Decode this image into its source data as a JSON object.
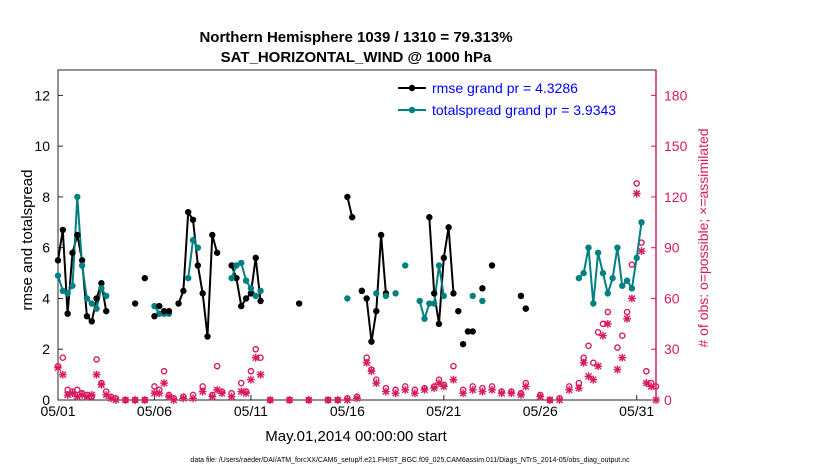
{
  "chart_data": {
    "type": "line",
    "title": "Northern Hemisphere 1039 / 1310 = 79.313%",
    "subtitle": "SAT_HORIZONTAL_WIND @ 1000 hPa",
    "xlabel": "May.01,2014 00:00:00 start",
    "ylabel": "rmse and totalspread",
    "ylabel_right": "# of obs: o=possible; ×=assimilated",
    "footer": "data file: /Users/raeder/DAI/ATM_forcXX/CAM6_setup/f.e21.FHIST_BGC.f09_025.CAM6assim.011/Diags_NTrS_2014-05/obs_diag_output.nc",
    "xlim": [
      1,
      32
    ],
    "ylim": [
      0,
      13
    ],
    "ylim_right": [
      0,
      195
    ],
    "x_ticks": [
      1,
      6,
      11,
      16,
      21,
      26,
      31
    ],
    "x_tick_labels": [
      "05/01",
      "05/06",
      "05/11",
      "05/16",
      "05/21",
      "05/26",
      "05/31"
    ],
    "y_ticks": [
      0,
      2,
      4,
      6,
      8,
      10,
      12
    ],
    "y_tick_labels": [
      "0",
      "2",
      "4",
      "6",
      "8",
      "10",
      "12"
    ],
    "y_right_ticks": [
      0,
      30,
      60,
      90,
      120,
      150,
      180
    ],
    "y_right_tick_labels": [
      "0",
      "30",
      "60",
      "90",
      "120",
      "150",
      "180"
    ],
    "legend_position": "top-right",
    "colors": {
      "rmse": "#000000",
      "spread": "#008080",
      "obs": "#d81b60",
      "right_axis": "#d81b60"
    },
    "series": [
      {
        "name": "rmse grand pr = 4.3286",
        "color": "#000000",
        "segments": [
          [
            [
              1.0,
              5.5
            ],
            [
              1.25,
              6.7
            ],
            [
              1.5,
              3.4
            ],
            [
              1.75,
              5.8
            ],
            [
              2.0,
              6.5
            ],
            [
              2.25,
              5.5
            ],
            [
              2.5,
              3.3
            ],
            [
              2.75,
              3.1
            ],
            [
              3.0,
              4.0
            ],
            [
              3.25,
              4.6
            ],
            [
              3.5,
              3.5
            ]
          ],
          [
            [
              7.25,
              3.8
            ],
            [
              7.5,
              4.3
            ],
            [
              7.75,
              7.4
            ],
            [
              8.0,
              7.1
            ],
            [
              8.25,
              5.3
            ],
            [
              8.5,
              4.2
            ],
            [
              8.75,
              2.5
            ],
            [
              9.0,
              6.5
            ],
            [
              9.25,
              5.8
            ]
          ],
          [
            [
              10.0,
              5.3
            ],
            [
              10.25,
              4.8
            ],
            [
              10.5,
              3.7
            ],
            [
              10.75,
              4.0
            ],
            [
              11.0,
              4.2
            ],
            [
              11.25,
              5.6
            ],
            [
              11.5,
              3.9
            ]
          ],
          [
            [
              16.0,
              8.0
            ],
            [
              16.25,
              7.2
            ]
          ],
          [
            [
              17.0,
              4.0
            ],
            [
              17.25,
              2.3
            ],
            [
              17.5,
              3.5
            ],
            [
              17.75,
              6.5
            ],
            [
              18.0,
              4.2
            ]
          ],
          [
            [
              20.25,
              7.2
            ],
            [
              20.5,
              4.2
            ],
            [
              20.75,
              3.0
            ],
            [
              21.0,
              5.6
            ],
            [
              21.25,
              6.8
            ],
            [
              21.5,
              4.2
            ]
          ]
        ]
      },
      {
        "name": "totalspread grand pr = 3.9343",
        "color": "#008080",
        "segments": [
          [
            [
              1.0,
              4.9
            ],
            [
              1.25,
              4.3
            ],
            [
              1.5,
              4.2
            ],
            [
              1.75,
              4.5
            ],
            [
              2.0,
              8.0
            ],
            [
              2.25,
              5.3
            ],
            [
              2.5,
              4.0
            ],
            [
              2.75,
              3.8
            ],
            [
              3.0,
              3.6
            ],
            [
              3.25,
              4.4
            ],
            [
              3.5,
              4.1
            ]
          ],
          [
            [
              6.0,
              3.7
            ],
            [
              6.25,
              3.4
            ],
            [
              6.5,
              3.4
            ],
            [
              6.75,
              3.4
            ]
          ],
          [
            [
              7.75,
              4.8
            ],
            [
              8.0,
              6.3
            ],
            [
              8.25,
              6.0
            ]
          ],
          [
            [
              10.0,
              4.8
            ],
            [
              10.25,
              5.3
            ],
            [
              10.5,
              5.4
            ],
            [
              10.75,
              4.7
            ],
            [
              11.0,
              4.4
            ],
            [
              11.25,
              4.1
            ]
          ],
          [
            [
              19.75,
              3.9
            ],
            [
              20.0,
              3.2
            ],
            [
              20.25,
              3.8
            ],
            [
              20.5,
              3.8
            ],
            [
              20.75,
              5.3
            ],
            [
              21.0,
              4.1
            ]
          ],
          [
            [
              28.0,
              4.8
            ],
            [
              28.25,
              5.0
            ],
            [
              28.5,
              6.0
            ],
            [
              28.75,
              3.8
            ],
            [
              29.0,
              5.8
            ],
            [
              29.25,
              5.0
            ],
            [
              29.5,
              4.2
            ],
            [
              29.75,
              4.8
            ],
            [
              30.0,
              6.0
            ],
            [
              30.25,
              4.5
            ],
            [
              30.5,
              4.7
            ],
            [
              30.75,
              4.4
            ],
            [
              31.0,
              5.6
            ],
            [
              31.25,
              7.0
            ]
          ]
        ],
        "isolated_points": [
          [
            11.5,
            4.3
          ],
          [
            16.0,
            4.0
          ],
          [
            16.75,
            4.3
          ],
          [
            17.5,
            4.2
          ],
          [
            18.0,
            4.1
          ],
          [
            18.5,
            4.2
          ],
          [
            19.0,
            5.3
          ],
          [
            22.5,
            4.1
          ],
          [
            23.0,
            3.9
          ],
          [
            25.0,
            4.1
          ],
          [
            25.25,
            3.6
          ]
        ]
      }
    ],
    "isolated_rmse_points": [
      [
        5.0,
        3.8
      ],
      [
        5.5,
        4.8
      ],
      [
        6.0,
        3.3
      ],
      [
        6.25,
        3.7
      ],
      [
        6.5,
        3.5
      ],
      [
        6.75,
        3.5
      ],
      [
        13.5,
        3.8
      ],
      [
        16.75,
        4.3
      ],
      [
        21.75,
        3.5
      ],
      [
        22.0,
        2.2
      ],
      [
        22.25,
        2.7
      ],
      [
        22.5,
        2.7
      ],
      [
        23.0,
        4.4
      ],
      [
        23.5,
        5.3
      ],
      [
        25.0,
        4.1
      ],
      [
        25.25,
        3.6
      ]
    ],
    "obs_possible": [
      [
        1,
        20
      ],
      [
        1.25,
        25
      ],
      [
        1.5,
        6
      ],
      [
        1.75,
        5
      ],
      [
        2,
        6
      ],
      [
        2.25,
        4
      ],
      [
        2.5,
        3
      ],
      [
        2.75,
        2
      ],
      [
        3,
        24
      ],
      [
        3.25,
        10
      ],
      [
        3.5,
        5
      ],
      [
        3.75,
        2
      ],
      [
        4,
        1
      ],
      [
        4.5,
        0
      ],
      [
        5,
        0
      ],
      [
        5.5,
        0
      ],
      [
        6,
        8
      ],
      [
        6.25,
        6
      ],
      [
        6.5,
        17
      ],
      [
        6.75,
        3
      ],
      [
        7,
        1
      ],
      [
        7.5,
        2
      ],
      [
        8,
        3
      ],
      [
        8.5,
        8
      ],
      [
        9,
        3
      ],
      [
        9.25,
        20
      ],
      [
        9.5,
        5
      ],
      [
        10,
        4
      ],
      [
        10.5,
        10
      ],
      [
        10.75,
        5
      ],
      [
        11,
        17
      ],
      [
        11.25,
        30
      ],
      [
        11.5,
        25
      ],
      [
        12,
        0
      ],
      [
        13,
        0
      ],
      [
        14,
        0
      ],
      [
        15,
        0
      ],
      [
        15.5,
        0
      ],
      [
        16,
        1
      ],
      [
        16.5,
        2
      ],
      [
        17,
        25
      ],
      [
        17.25,
        18
      ],
      [
        17.5,
        12
      ],
      [
        18,
        7
      ],
      [
        18.5,
        6
      ],
      [
        19,
        8
      ],
      [
        19.5,
        6
      ],
      [
        20,
        7
      ],
      [
        20.5,
        8
      ],
      [
        20.75,
        12
      ],
      [
        21,
        9
      ],
      [
        21.5,
        20
      ],
      [
        22,
        6
      ],
      [
        22.5,
        8
      ],
      [
        23,
        7
      ],
      [
        23.5,
        8
      ],
      [
        24,
        5
      ],
      [
        24.5,
        5
      ],
      [
        25,
        4
      ],
      [
        25.25,
        10
      ],
      [
        26,
        3
      ],
      [
        26.5,
        0
      ],
      [
        27,
        1
      ],
      [
        27.5,
        8
      ],
      [
        28,
        10
      ],
      [
        28.25,
        25
      ],
      [
        28.5,
        32
      ],
      [
        28.75,
        22
      ],
      [
        29,
        40
      ],
      [
        29.25,
        45
      ],
      [
        29.5,
        52
      ],
      [
        30,
        31
      ],
      [
        30.25,
        38
      ],
      [
        30.5,
        52
      ],
      [
        30.75,
        80
      ],
      [
        31,
        128
      ],
      [
        31.25,
        93
      ],
      [
        31.5,
        17
      ],
      [
        31.75,
        10
      ],
      [
        32,
        8
      ]
    ],
    "obs_assimilated": [
      [
        1,
        19
      ],
      [
        1.25,
        15
      ],
      [
        1.5,
        3
      ],
      [
        1.75,
        4
      ],
      [
        2,
        2
      ],
      [
        2.25,
        3
      ],
      [
        2.5,
        2
      ],
      [
        2.75,
        3
      ],
      [
        3,
        15
      ],
      [
        3.25,
        9
      ],
      [
        3.5,
        3
      ],
      [
        3.75,
        1
      ],
      [
        4,
        0
      ],
      [
        4.5,
        0
      ],
      [
        5,
        0
      ],
      [
        5.5,
        0
      ],
      [
        6,
        4
      ],
      [
        6.25,
        4
      ],
      [
        6.5,
        10
      ],
      [
        6.75,
        2
      ],
      [
        7,
        0
      ],
      [
        7.5,
        1
      ],
      [
        8,
        1
      ],
      [
        8.5,
        5
      ],
      [
        9,
        2
      ],
      [
        9.25,
        6
      ],
      [
        9.5,
        4
      ],
      [
        10,
        2
      ],
      [
        10.5,
        5
      ],
      [
        10.75,
        4
      ],
      [
        11,
        12
      ],
      [
        11.25,
        25
      ],
      [
        11.5,
        15
      ],
      [
        12,
        0
      ],
      [
        13,
        0
      ],
      [
        14,
        0
      ],
      [
        15,
        0
      ],
      [
        15.5,
        0
      ],
      [
        16,
        0
      ],
      [
        16.5,
        1
      ],
      [
        17,
        22
      ],
      [
        17.25,
        17
      ],
      [
        17.5,
        10
      ],
      [
        18,
        5
      ],
      [
        18.5,
        4
      ],
      [
        19,
        6
      ],
      [
        19.5,
        4
      ],
      [
        20,
        6
      ],
      [
        20.5,
        7
      ],
      [
        20.75,
        10
      ],
      [
        21,
        8
      ],
      [
        21.5,
        12
      ],
      [
        22,
        4
      ],
      [
        22.5,
        6
      ],
      [
        23,
        5
      ],
      [
        23.5,
        6
      ],
      [
        24,
        4
      ],
      [
        24.5,
        4
      ],
      [
        25,
        3
      ],
      [
        25.25,
        8
      ],
      [
        26,
        2
      ],
      [
        26.5,
        0
      ],
      [
        27,
        0
      ],
      [
        27.5,
        6
      ],
      [
        28,
        7
      ],
      [
        28.25,
        22
      ],
      [
        28.5,
        14
      ],
      [
        28.75,
        12
      ],
      [
        29,
        20
      ],
      [
        29.25,
        38
      ],
      [
        29.5,
        45
      ],
      [
        30,
        18
      ],
      [
        30.25,
        25
      ],
      [
        30.5,
        48
      ],
      [
        30.75,
        60
      ],
      [
        31,
        122
      ],
      [
        31.25,
        88
      ],
      [
        31.5,
        10
      ],
      [
        31.75,
        8
      ],
      [
        32,
        0
      ]
    ]
  }
}
